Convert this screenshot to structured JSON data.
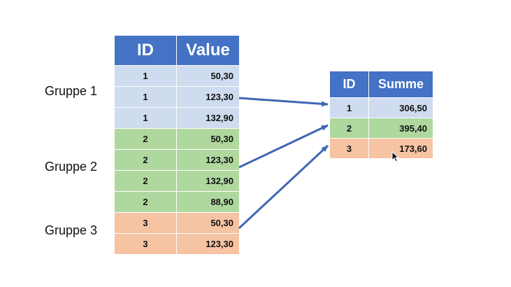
{
  "colors": {
    "header": "#4472c4",
    "group1": "#cfdbee",
    "group2": "#afd89f",
    "group3": "#f6c3a3",
    "arrow": "#3d68b3"
  },
  "groups": [
    {
      "label": "Gruppe 1"
    },
    {
      "label": "Gruppe 2"
    },
    {
      "label": "Gruppe 3"
    }
  ],
  "source_table": {
    "headers": {
      "id": "ID",
      "value": "Value"
    },
    "rows": [
      {
        "id": "1",
        "value": "50,30",
        "group": 1
      },
      {
        "id": "1",
        "value": "123,30",
        "group": 1
      },
      {
        "id": "1",
        "value": "132,90",
        "group": 1
      },
      {
        "id": "2",
        "value": "50,30",
        "group": 2
      },
      {
        "id": "2",
        "value": "123,30",
        "group": 2
      },
      {
        "id": "2",
        "value": "132,90",
        "group": 2
      },
      {
        "id": "2",
        "value": "88,90",
        "group": 2
      },
      {
        "id": "3",
        "value": "50,30",
        "group": 3
      },
      {
        "id": "3",
        "value": "123,30",
        "group": 3
      }
    ]
  },
  "sum_table": {
    "headers": {
      "id": "ID",
      "sum": "Summe"
    },
    "rows": [
      {
        "id": "1",
        "sum": "306,50",
        "group": 1
      },
      {
        "id": "2",
        "sum": "395,40",
        "group": 2
      },
      {
        "id": "3",
        "sum": "173,60",
        "group": 3
      }
    ]
  },
  "icons": {
    "pointer": "mouse-cursor-icon"
  }
}
